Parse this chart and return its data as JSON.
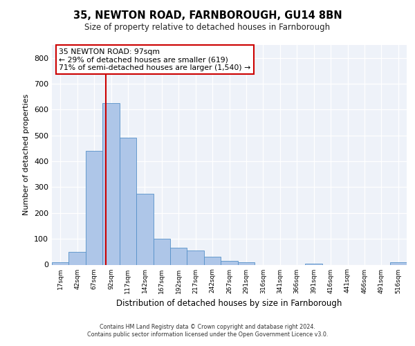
{
  "title": "35, NEWTON ROAD, FARNBOROUGH, GU14 8BN",
  "subtitle": "Size of property relative to detached houses in Farnborough",
  "xlabel": "Distribution of detached houses by size in Farnborough",
  "ylabel": "Number of detached properties",
  "footnote1": "Contains HM Land Registry data © Crown copyright and database right 2024.",
  "footnote2": "Contains public sector information licensed under the Open Government Licence v3.0.",
  "bin_labels": [
    "17sqm",
    "42sqm",
    "67sqm",
    "92sqm",
    "117sqm",
    "142sqm",
    "167sqm",
    "192sqm",
    "217sqm",
    "242sqm",
    "267sqm",
    "291sqm",
    "316sqm",
    "341sqm",
    "366sqm",
    "391sqm",
    "416sqm",
    "441sqm",
    "466sqm",
    "491sqm",
    "516sqm"
  ],
  "bar_heights": [
    10,
    50,
    440,
    625,
    490,
    275,
    100,
    65,
    55,
    30,
    15,
    10,
    0,
    0,
    0,
    5,
    0,
    0,
    0,
    0,
    10
  ],
  "bar_color": "#aec6e8",
  "bar_edge_color": "#5590c8",
  "property_line_color": "#cc0000",
  "annotation_text": "35 NEWTON ROAD: 97sqm\n← 29% of detached houses are smaller (619)\n71% of semi-detached houses are larger (1,540) →",
  "annotation_box_color": "#cc0000",
  "ylim": [
    0,
    850
  ],
  "yticks": [
    0,
    100,
    200,
    300,
    400,
    500,
    600,
    700,
    800
  ],
  "bg_color": "#eef2f9",
  "fig_bg_color": "#ffffff",
  "grid_color": "#ffffff"
}
